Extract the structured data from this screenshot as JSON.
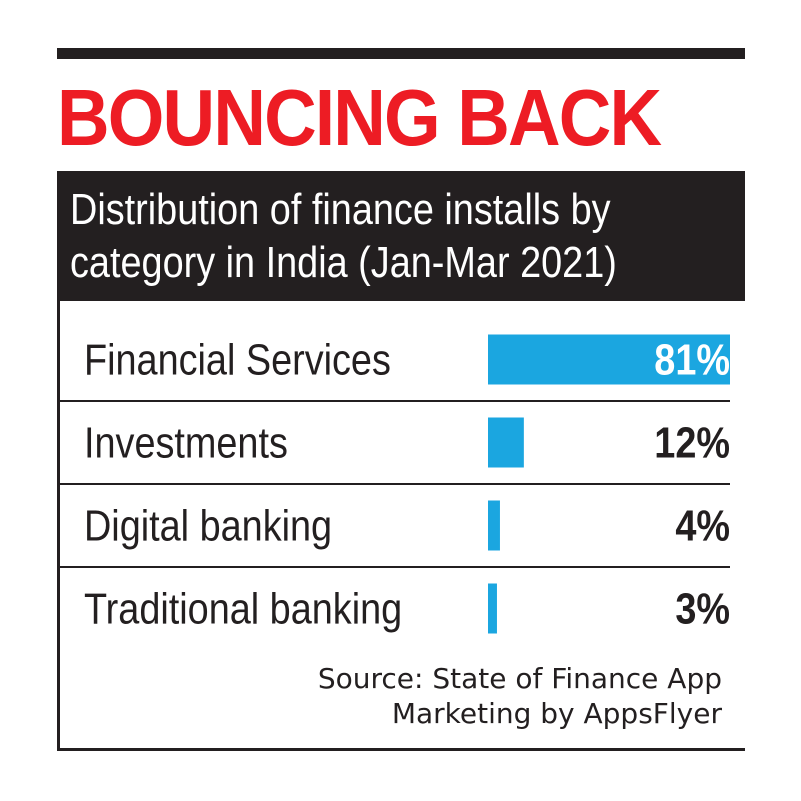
{
  "title": "BOUNCING BACK",
  "subtitle": "Distribution of finance installs by category in India (Jan-Mar 2021)",
  "source": [
    "Source: State of Finance App",
    "Marketing by AppsFlyer"
  ],
  "colors": {
    "bar": "#1ba6e0",
    "headline": "#ed1c24",
    "dark": "#231f20",
    "background": "#ffffff"
  },
  "chart_data": {
    "type": "bar",
    "orientation": "horizontal",
    "title": "BOUNCING BACK",
    "subtitle": "Distribution of finance installs by category in India (Jan-Mar 2021)",
    "categories": [
      "Financial Services",
      "Investments",
      "Digital banking",
      "Traditional banking"
    ],
    "values": [
      81,
      12,
      4,
      3
    ],
    "labels": [
      "81%",
      "12%",
      "4%",
      "3%"
    ],
    "unit": "%",
    "xlim": [
      0,
      81
    ],
    "grid": false,
    "legend": "none"
  }
}
